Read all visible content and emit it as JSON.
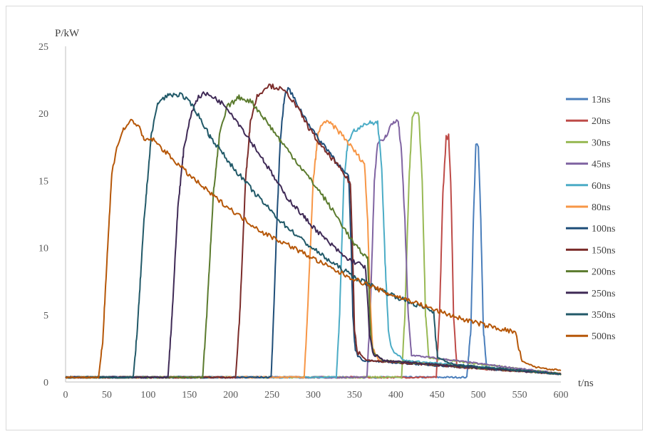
{
  "chart_data": {
    "type": "line",
    "xlabel": "t/ns",
    "ylabel": "P/kW",
    "xlim": [
      0,
      600
    ],
    "ylim": [
      0,
      25
    ],
    "x_ticks": [
      0,
      50,
      100,
      150,
      200,
      250,
      300,
      350,
      400,
      450,
      500,
      550,
      600
    ],
    "y_ticks": [
      0,
      5,
      10,
      15,
      20,
      25
    ],
    "grid": false,
    "legend_position": "right",
    "baseline_kW": 0.35,
    "series": [
      {
        "name": "13ns",
        "color": "#4a7ebb",
        "points": [
          [
            0,
            0.35
          ],
          [
            486,
            0.35
          ],
          [
            491,
            4
          ],
          [
            494,
            12
          ],
          [
            497,
            17.8
          ],
          [
            500,
            17.6
          ],
          [
            503,
            12
          ],
          [
            506,
            4
          ],
          [
            510,
            1.0
          ],
          [
            600,
            0.6
          ]
        ]
      },
      {
        "name": "20ns",
        "color": "#be4b48",
        "points": [
          [
            0,
            0.35
          ],
          [
            449,
            0.35
          ],
          [
            453,
            5
          ],
          [
            457,
            14
          ],
          [
            461,
            18.2
          ],
          [
            464,
            18.3
          ],
          [
            467,
            14
          ],
          [
            470,
            5
          ],
          [
            474,
            1.1
          ],
          [
            600,
            0.6
          ]
        ]
      },
      {
        "name": "30ns",
        "color": "#98b954",
        "points": [
          [
            0,
            0.35
          ],
          [
            407,
            0.35
          ],
          [
            411,
            5
          ],
          [
            416,
            15
          ],
          [
            420,
            19.7
          ],
          [
            424,
            20.2
          ],
          [
            428,
            19.8
          ],
          [
            432,
            15
          ],
          [
            436,
            5
          ],
          [
            440,
            1.8
          ],
          [
            600,
            0.6
          ]
        ]
      },
      {
        "name": "45ns",
        "color": "#8064a2",
        "points": [
          [
            0,
            0.35
          ],
          [
            365,
            0.35
          ],
          [
            369,
            5
          ],
          [
            374,
            15
          ],
          [
            378,
            17.9
          ],
          [
            383,
            17.9
          ],
          [
            388,
            18.3
          ],
          [
            393,
            19
          ],
          [
            398,
            19.4
          ],
          [
            403,
            19.4
          ],
          [
            407,
            17
          ],
          [
            411,
            12
          ],
          [
            415,
            5
          ],
          [
            419,
            2
          ],
          [
            600,
            0.6
          ]
        ]
      },
      {
        "name": "60ns",
        "color": "#4bacc6",
        "points": [
          [
            0,
            0.35
          ],
          [
            328,
            0.35
          ],
          [
            332,
            5
          ],
          [
            337,
            15
          ],
          [
            342,
            18
          ],
          [
            350,
            18.7
          ],
          [
            360,
            19.2
          ],
          [
            370,
            19.3
          ],
          [
            378,
            19.3
          ],
          [
            383,
            16
          ],
          [
            387,
            9
          ],
          [
            391,
            4
          ],
          [
            395,
            2.5
          ],
          [
            410,
            1.6
          ],
          [
            600,
            0.6
          ]
        ]
      },
      {
        "name": "80ns",
        "color": "#f79646",
        "points": [
          [
            0,
            0.35
          ],
          [
            289,
            0.35
          ],
          [
            293,
            5
          ],
          [
            300,
            15
          ],
          [
            306,
            18.5
          ],
          [
            312,
            19.4
          ],
          [
            322,
            19.2
          ],
          [
            335,
            18.4
          ],
          [
            345,
            17.6
          ],
          [
            355,
            16.8
          ],
          [
            362,
            16.3
          ],
          [
            366,
            12
          ],
          [
            369,
            6
          ],
          [
            372,
            2.5
          ],
          [
            380,
            1.6
          ],
          [
            600,
            0.6
          ]
        ]
      },
      {
        "name": "100ns",
        "color": "#1f4e79",
        "points": [
          [
            0,
            0.35
          ],
          [
            249,
            0.35
          ],
          [
            252,
            5
          ],
          [
            256,
            12
          ],
          [
            260,
            18
          ],
          [
            265,
            21.2
          ],
          [
            270,
            21.9
          ],
          [
            276,
            21.2
          ],
          [
            285,
            20.2
          ],
          [
            295,
            19.2
          ],
          [
            305,
            18.2
          ],
          [
            315,
            17.5
          ],
          [
            325,
            16.7
          ],
          [
            335,
            15.8
          ],
          [
            343,
            15.2
          ],
          [
            346,
            10
          ],
          [
            348,
            5
          ],
          [
            351,
            2.3
          ],
          [
            360,
            1.6
          ],
          [
            600,
            0.6
          ]
        ]
      },
      {
        "name": "150ns",
        "color": "#7b2c2a",
        "points": [
          [
            0,
            0.35
          ],
          [
            206,
            0.35
          ],
          [
            211,
            5
          ],
          [
            218,
            15
          ],
          [
            224,
            19.5
          ],
          [
            232,
            21.3
          ],
          [
            245,
            22.1
          ],
          [
            258,
            21.9
          ],
          [
            270,
            21.4
          ],
          [
            282,
            20.3
          ],
          [
            295,
            18.9
          ],
          [
            310,
            17.5
          ],
          [
            325,
            16.5
          ],
          [
            338,
            15.4
          ],
          [
            345,
            14.8
          ],
          [
            348,
            9
          ],
          [
            350,
            4
          ],
          [
            353,
            2.3
          ],
          [
            365,
            1.6
          ],
          [
            600,
            0.6
          ]
        ]
      },
      {
        "name": "200ns",
        "color": "#5b7b2e",
        "points": [
          [
            0,
            0.35
          ],
          [
            166,
            0.35
          ],
          [
            171,
            5
          ],
          [
            179,
            14
          ],
          [
            187,
            18.6
          ],
          [
            196,
            20.5
          ],
          [
            210,
            21.2
          ],
          [
            225,
            20.9
          ],
          [
            240,
            19.7
          ],
          [
            260,
            18.0
          ],
          [
            285,
            16.0
          ],
          [
            310,
            14.0
          ],
          [
            330,
            12.2
          ],
          [
            350,
            10.2
          ],
          [
            366,
            9.2
          ],
          [
            368,
            6
          ],
          [
            370,
            3
          ],
          [
            373,
            2.2
          ],
          [
            385,
            1.6
          ],
          [
            600,
            0.6
          ]
        ]
      },
      {
        "name": "250ns",
        "color": "#3f2a56",
        "points": [
          [
            0,
            0.35
          ],
          [
            124,
            0.35
          ],
          [
            129,
            5
          ],
          [
            136,
            13
          ],
          [
            143,
            17.2
          ],
          [
            150,
            19.5
          ],
          [
            158,
            21.0
          ],
          [
            167,
            21.5
          ],
          [
            180,
            21.2
          ],
          [
            195,
            20.5
          ],
          [
            215,
            18.8
          ],
          [
            240,
            16.5
          ],
          [
            265,
            14.0
          ],
          [
            290,
            12.2
          ],
          [
            315,
            10.6
          ],
          [
            340,
            9.2
          ],
          [
            363,
            8.6
          ],
          [
            366,
            6
          ],
          [
            368,
            3.5
          ],
          [
            372,
            2.2
          ],
          [
            385,
            1.6
          ],
          [
            600,
            0.6
          ]
        ]
      },
      {
        "name": "350ns",
        "color": "#215968",
        "points": [
          [
            0,
            0.35
          ],
          [
            82,
            0.35
          ],
          [
            87,
            4
          ],
          [
            95,
            12
          ],
          [
            104,
            18.5
          ],
          [
            112,
            20.8
          ],
          [
            125,
            21.4
          ],
          [
            140,
            21.4
          ],
          [
            155,
            20.5
          ],
          [
            175,
            18.3
          ],
          [
            200,
            16.2
          ],
          [
            230,
            14.0
          ],
          [
            260,
            12.0
          ],
          [
            290,
            10.4
          ],
          [
            320,
            9.0
          ],
          [
            350,
            7.8
          ],
          [
            380,
            6.9
          ],
          [
            410,
            6.1
          ],
          [
            440,
            5.4
          ],
          [
            446,
            5.2
          ],
          [
            448,
            3.5
          ],
          [
            451,
            1.8
          ],
          [
            470,
            1.3
          ],
          [
            600,
            0.6
          ]
        ]
      },
      {
        "name": "500ns",
        "color": "#b65708",
        "points": [
          [
            0,
            0.35
          ],
          [
            40,
            0.35
          ],
          [
            45,
            3
          ],
          [
            50,
            9
          ],
          [
            56,
            15.5
          ],
          [
            62,
            17.5
          ],
          [
            70,
            18.8
          ],
          [
            80,
            19.5
          ],
          [
            88,
            19.1
          ],
          [
            95,
            18.0
          ],
          [
            105,
            18.1
          ],
          [
            120,
            17.2
          ],
          [
            150,
            15.4
          ],
          [
            180,
            13.8
          ],
          [
            210,
            12.4
          ],
          [
            240,
            11.1
          ],
          [
            270,
            10.2
          ],
          [
            300,
            9.2
          ],
          [
            330,
            8.2
          ],
          [
            360,
            7.4
          ],
          [
            390,
            6.6
          ],
          [
            420,
            6.0
          ],
          [
            450,
            5.3
          ],
          [
            480,
            4.7
          ],
          [
            510,
            4.2
          ],
          [
            545,
            3.7
          ],
          [
            549,
            2.5
          ],
          [
            553,
            1.5
          ],
          [
            570,
            1.1
          ],
          [
            600,
            0.85
          ]
        ]
      }
    ]
  }
}
